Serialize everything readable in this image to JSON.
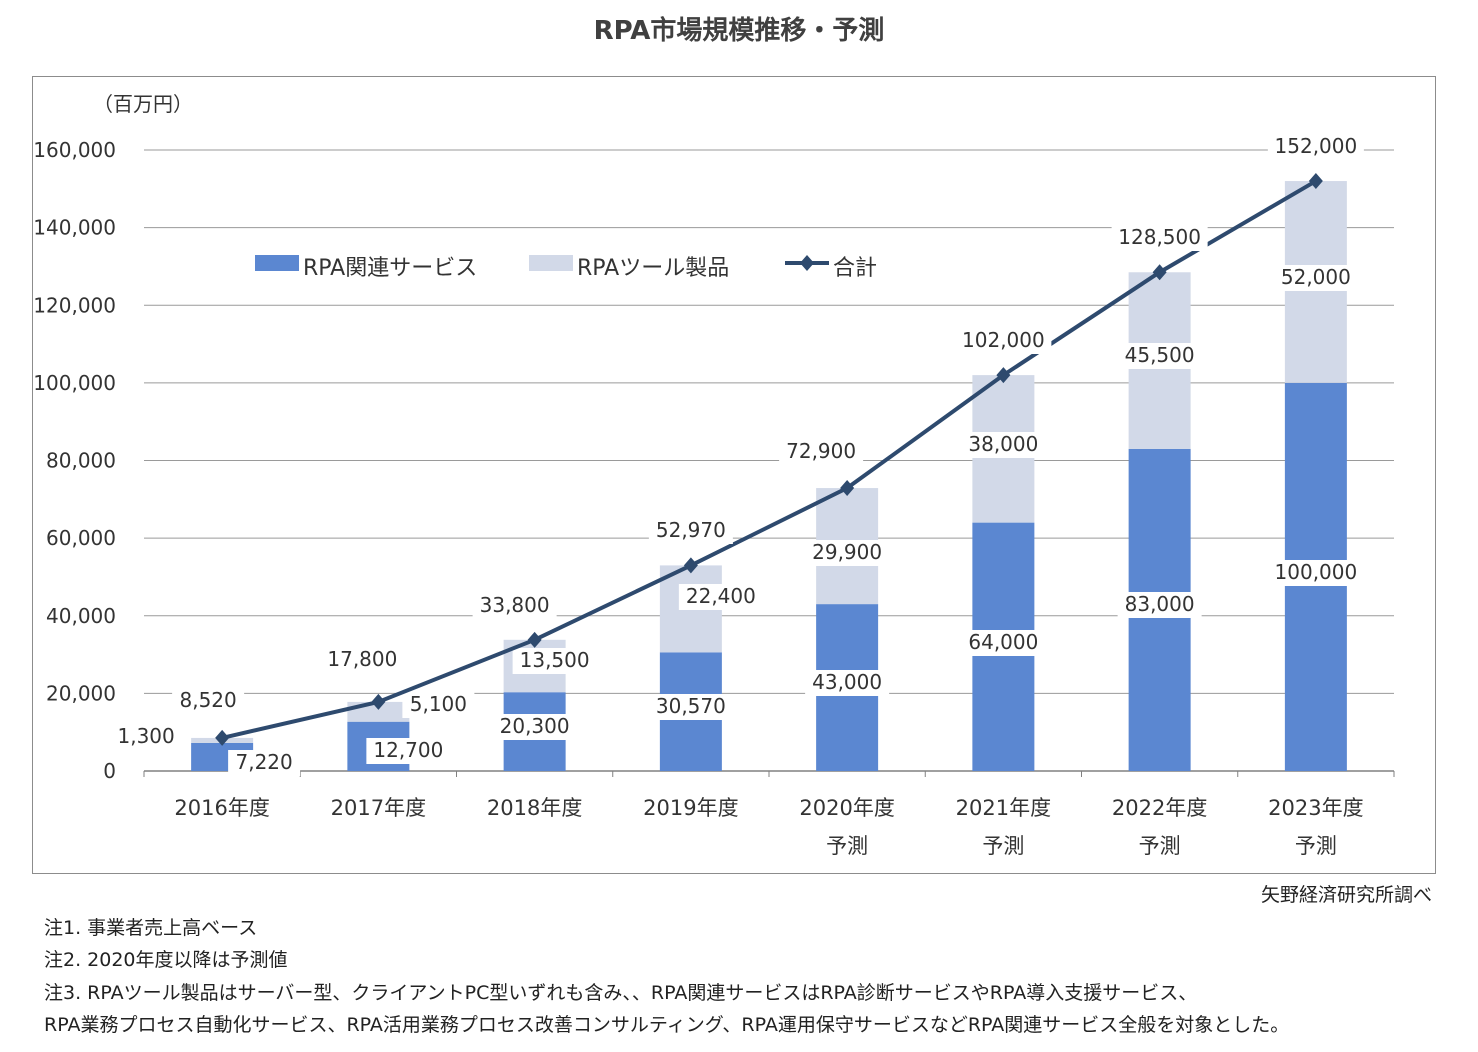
{
  "chart_data": {
    "type": "bar",
    "stacked": true,
    "title": "RPA市場規模推移・予測",
    "ylabel": "（百万円）",
    "ylim": [
      0,
      160000
    ],
    "yticks": [
      "0",
      "20,000",
      "40,000",
      "60,000",
      "80,000",
      "100,000",
      "120,000",
      "140,000",
      "160,000"
    ],
    "grid": true,
    "legend_position": "top-left",
    "categories": [
      [
        "2016年度",
        ""
      ],
      [
        "2017年度",
        ""
      ],
      [
        "2018年度",
        ""
      ],
      [
        "2019年度",
        ""
      ],
      [
        "2020年度",
        "予測"
      ],
      [
        "2021年度",
        "予測"
      ],
      [
        "2022年度",
        "予測"
      ],
      [
        "2023年度",
        "予測"
      ]
    ],
    "series": [
      {
        "name": "RPA関連サービス",
        "kind": "bar",
        "color": "#5b87d1",
        "values": [
          7220,
          12700,
          20300,
          30570,
          43000,
          64000,
          83000,
          100000
        ],
        "labels": [
          "7,220",
          "12,700",
          "20,300",
          "30,570",
          "43,000",
          "64,000",
          "83,000",
          "100,000"
        ]
      },
      {
        "name": "RPAツール製品",
        "kind": "bar",
        "color": "#d2d9e8",
        "values": [
          1300,
          5100,
          13500,
          22400,
          29900,
          38000,
          45500,
          52000
        ],
        "labels": [
          "1,300",
          "5,100",
          "13,500",
          "22,400",
          "29,900",
          "38,000",
          "45,500",
          "52,000"
        ]
      },
      {
        "name": "合計",
        "kind": "line",
        "color": "#2e4a6e",
        "values": [
          8520,
          17800,
          33800,
          52970,
          72900,
          102000,
          128500,
          152000
        ],
        "labels": [
          "8,520",
          "17,800",
          "33,800",
          "52,970",
          "72,900",
          "102,000",
          "128,500",
          "152,000"
        ]
      }
    ]
  },
  "source": "矢野経済研究所調べ",
  "notes": [
    "注1.  事業者売上高ベース",
    "注2.  2020年度以降は予測値",
    "注3.  RPAツール製品はサーバー型、クライアントPC型いずれも含み、、RPA関連サービスはRPA診断サービスやRPA導入支援サービス、",
    "RPA業務プロセス自動化サービス、RPA活用業務プロセス改善コンサルティング、RPA運用保守サービスなどRPA関連サービス全般を対象とした。"
  ]
}
